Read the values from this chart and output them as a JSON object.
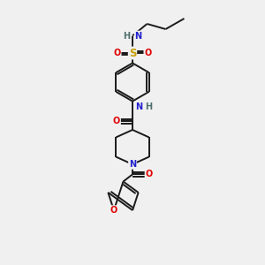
{
  "background_color": "#f0f0f0",
  "bond_color": "#1a1a1a",
  "atom_colors": {
    "N": "#2020d0",
    "O": "#e00000",
    "S": "#c8a000",
    "H": "#507070",
    "C": "#1a1a1a"
  },
  "font_size": 7.0,
  "figsize": [
    3.0,
    3.0
  ],
  "dpi": 100
}
